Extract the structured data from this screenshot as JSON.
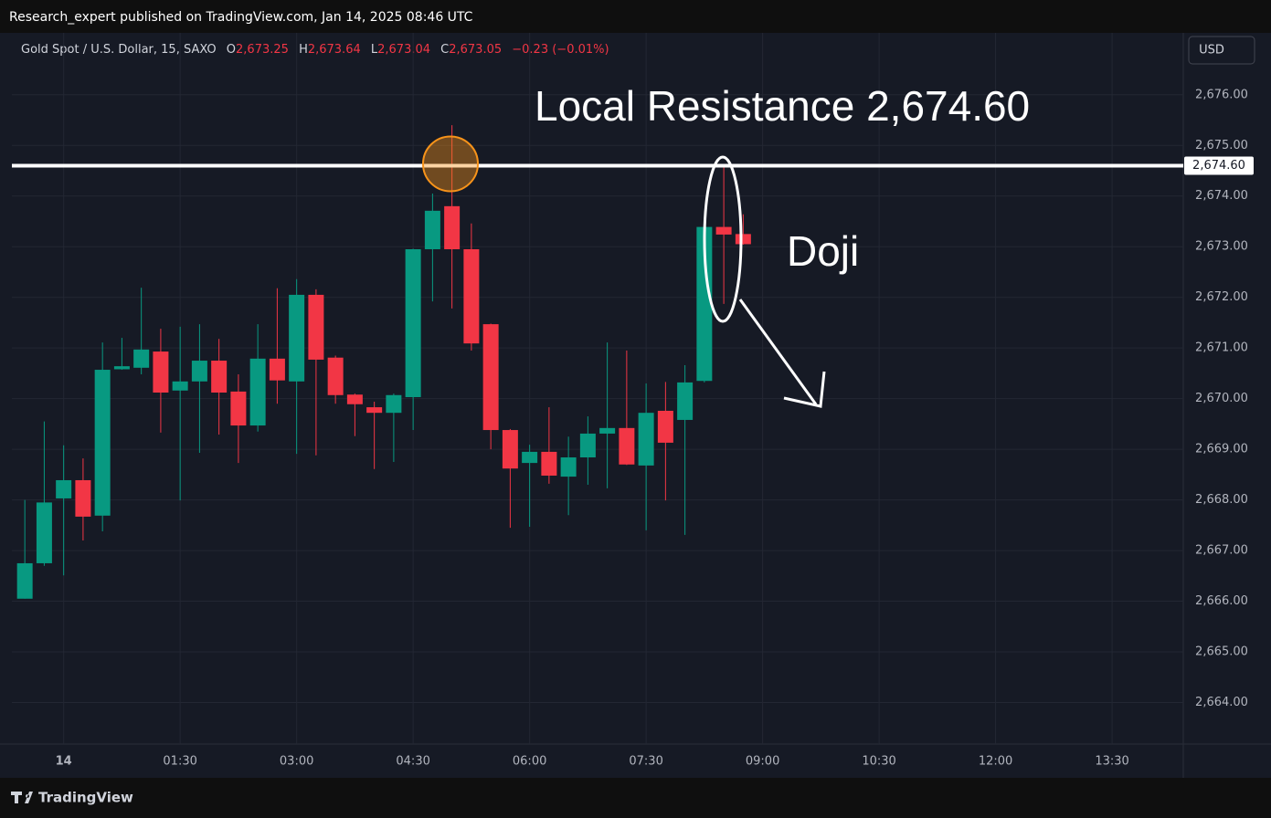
{
  "chart_data": {
    "type": "candlestick",
    "attribution": "Research_expert published on TradingView.com, Jan 14, 2025 08:46 UTC",
    "symbol": "Gold Spot / U.S. Dollar, 15, SAXO",
    "header": {
      "o": "O",
      "o_value": "2,673.25",
      "h": "H",
      "h_value": "2,673.64",
      "l": "L",
      "l_value": "2,673.04",
      "c": "C",
      "c_value": "2,673.05",
      "change": "−0.23 (−0.01%)"
    },
    "currency": "USD",
    "brand": "TradingView",
    "x": [
      "23:30",
      "23:45",
      "00:00",
      "00:15",
      "00:30",
      "00:45",
      "01:00",
      "01:15",
      "01:30",
      "01:45",
      "02:00",
      "02:15",
      "02:30",
      "02:45",
      "03:00",
      "03:15",
      "03:30",
      "03:45",
      "04:00",
      "04:15",
      "04:30",
      "04:45",
      "05:00",
      "05:15",
      "05:30",
      "05:45",
      "06:00",
      "06:15",
      "06:30",
      "06:45",
      "07:00",
      "07:15",
      "07:30",
      "07:45",
      "08:00",
      "08:15",
      "08:30",
      "08:45"
    ],
    "open": [
      2666.05,
      2666.75,
      2668.03,
      2668.39,
      2667.69,
      2670.58,
      2670.61,
      2670.93,
      2670.16,
      2670.34,
      2670.75,
      2670.14,
      2669.47,
      2670.79,
      2670.34,
      2672.05,
      2670.81,
      2670.08,
      2669.83,
      2669.72,
      2670.03,
      2672.95,
      2673.8,
      2672.95,
      2671.47,
      2669.38,
      2668.73,
      2668.95,
      2668.46,
      2668.84,
      2669.31,
      2669.42,
      2668.68,
      2669.76,
      2669.58,
      2670.35,
      2673.39,
      2673.25
    ],
    "high": [
      2668.0,
      2669.55,
      2669.08,
      2668.82,
      2671.11,
      2671.2,
      2672.19,
      2671.38,
      2671.42,
      2671.47,
      2671.18,
      2670.48,
      2671.47,
      2672.18,
      2672.36,
      2672.16,
      2670.85,
      2670.1,
      2669.94,
      2670.1,
      2672.96,
      2674.05,
      2675.4,
      2673.46,
      2671.48,
      2669.4,
      2669.09,
      2669.83,
      2669.25,
      2669.65,
      2671.11,
      2670.95,
      2670.3,
      2670.33,
      2670.66,
      2673.4,
      2674.6,
      2673.64
    ],
    "low": [
      2666.05,
      2666.7,
      2666.51,
      2667.2,
      2667.38,
      2670.57,
      2670.48,
      2669.33,
      2667.99,
      2668.93,
      2669.29,
      2668.73,
      2669.35,
      2669.9,
      2668.91,
      2668.88,
      2669.9,
      2669.26,
      2668.61,
      2668.75,
      2669.38,
      2671.92,
      2671.78,
      2670.95,
      2669.0,
      2667.45,
      2667.47,
      2668.32,
      2667.7,
      2668.3,
      2668.23,
      2668.69,
      2667.4,
      2667.99,
      2667.31,
      2670.32,
      2671.87,
      2673.04
    ],
    "close": [
      2666.75,
      2667.95,
      2668.39,
      2667.67,
      2670.57,
      2670.64,
      2670.97,
      2670.12,
      2670.34,
      2670.75,
      2670.12,
      2669.47,
      2670.79,
      2670.36,
      2672.05,
      2670.77,
      2670.07,
      2669.89,
      2669.72,
      2670.07,
      2672.95,
      2673.71,
      2672.95,
      2671.09,
      2669.38,
      2668.62,
      2668.95,
      2668.48,
      2668.84,
      2669.31,
      2669.42,
      2668.7,
      2669.72,
      2669.13,
      2670.32,
      2673.39,
      2673.24,
      2673.05
    ],
    "up_color": "#089981",
    "down_color": "#f23645",
    "xlim": [
      "23:20",
      "14:25"
    ],
    "xticks": [
      {
        "value": "00:00",
        "label": "14"
      },
      "01:30",
      "03:00",
      "04:30",
      "06:00",
      "07:30",
      "09:00",
      "10:30",
      "12:00",
      "13:30"
    ],
    "ylim": [
      2663.18,
      2677.15
    ],
    "yticks": [
      {
        "value": 2664,
        "label": "2,664.00"
      },
      {
        "value": 2665,
        "label": "2,665.00"
      },
      {
        "value": 2666,
        "label": "2,666.00"
      },
      {
        "value": 2667,
        "label": "2,667.00"
      },
      {
        "value": 2668,
        "label": "2,668.00"
      },
      {
        "value": 2669,
        "label": "2,669.00"
      },
      {
        "value": 2670,
        "label": "2,670.00"
      },
      {
        "value": 2671,
        "label": "2,671.00"
      },
      {
        "value": 2672,
        "label": "2,672.00"
      },
      {
        "value": 2673,
        "label": "2,673.00"
      },
      {
        "value": 2674,
        "label": "2,674.00"
      },
      {
        "value": 2675,
        "label": "2,675.00"
      },
      {
        "value": 2676,
        "label": "2,676.00"
      }
    ],
    "grid": true,
    "resistance": {
      "value": 2674.6,
      "label": "2,674.60",
      "annotation": "Local Resistance 2,674.60"
    },
    "annotations": [
      "Doji"
    ]
  }
}
